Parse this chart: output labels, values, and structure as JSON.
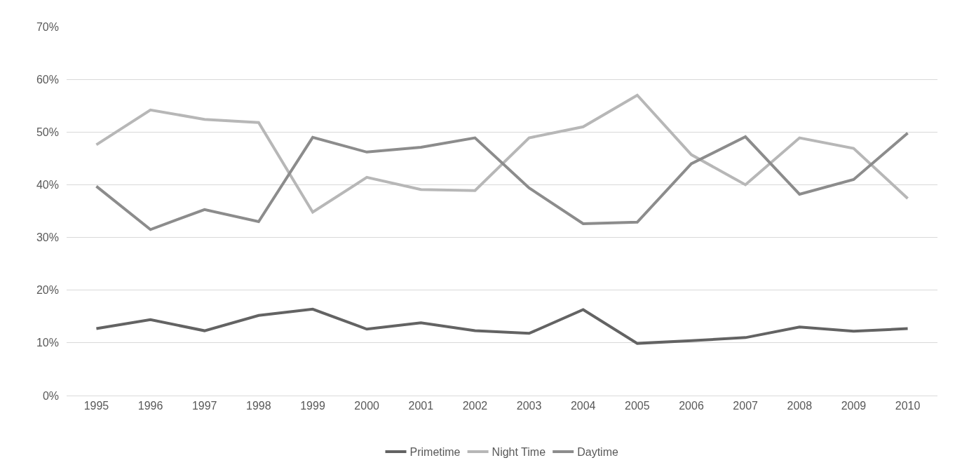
{
  "chart_data": {
    "type": "line",
    "categories": [
      "1995",
      "1996",
      "1997",
      "1998",
      "1999",
      "2000",
      "2001",
      "2002",
      "2003",
      "2004",
      "2005",
      "2006",
      "2007",
      "2008",
      "2009",
      "2010"
    ],
    "series": [
      {
        "name": "Primetime",
        "color": "#636363",
        "values": [
          12.7,
          14.4,
          12.3,
          15.2,
          16.4,
          12.6,
          13.8,
          12.3,
          11.8,
          16.3,
          9.9,
          10.4,
          11.0,
          13.0,
          12.2,
          12.7
        ]
      },
      {
        "name": "Night Time",
        "color": "#b7b7b7",
        "values": [
          47.6,
          54.2,
          52.4,
          51.8,
          34.8,
          41.4,
          39.1,
          38.9,
          48.9,
          51.0,
          57.0,
          45.7,
          40.0,
          48.9,
          46.9,
          37.4
        ]
      },
      {
        "name": "Daytime",
        "color": "#8c8c8c",
        "values": [
          39.7,
          31.5,
          35.3,
          33.0,
          49.0,
          46.2,
          47.1,
          48.9,
          39.4,
          32.6,
          32.9,
          44.0,
          49.1,
          38.2,
          41.0,
          49.8
        ]
      }
    ],
    "ylim": [
      0,
      70
    ],
    "yticks": [
      {
        "value": 0,
        "label": "0%"
      },
      {
        "value": 10,
        "label": "10%"
      },
      {
        "value": 20,
        "label": "20%"
      },
      {
        "value": 30,
        "label": "30%"
      },
      {
        "value": 40,
        "label": "40%"
      },
      {
        "value": 50,
        "label": "50%"
      },
      {
        "value": 60,
        "label": "60%"
      },
      {
        "value": 70,
        "label": "70%"
      }
    ],
    "grid": "y",
    "legend": "bottom",
    "marker": "none",
    "line_style": "solid"
  }
}
